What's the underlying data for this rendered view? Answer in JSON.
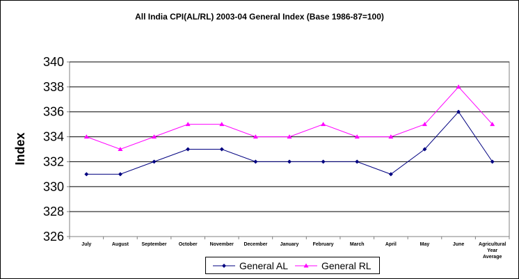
{
  "chart_data": {
    "type": "line",
    "title": "All India CPI(AL/RL) 2003-04 General Index (Base 1986-87=100)",
    "xlabel": "",
    "ylabel": "Index",
    "ylim": [
      326,
      340
    ],
    "yticks": [
      "326",
      "328",
      "330",
      "332",
      "334",
      "336",
      "338",
      "340"
    ],
    "categories": [
      "July",
      "August",
      "September",
      "October",
      "November",
      "December",
      "January",
      "February",
      "March",
      "April",
      "May",
      "June",
      "Agricultural Year Average"
    ],
    "series": [
      {
        "name": "General AL",
        "color": "#000080",
        "marker": "diamond",
        "values": [
          331,
          331,
          332,
          333,
          333,
          332,
          332,
          332,
          332,
          331,
          333,
          336,
          332
        ]
      },
      {
        "name": "General RL",
        "color": "#ff00ff",
        "marker": "triangle",
        "values": [
          334,
          333,
          334,
          335,
          335,
          334,
          334,
          335,
          334,
          334,
          335,
          338,
          335
        ]
      }
    ],
    "grid": true,
    "legend_position": "bottom"
  }
}
